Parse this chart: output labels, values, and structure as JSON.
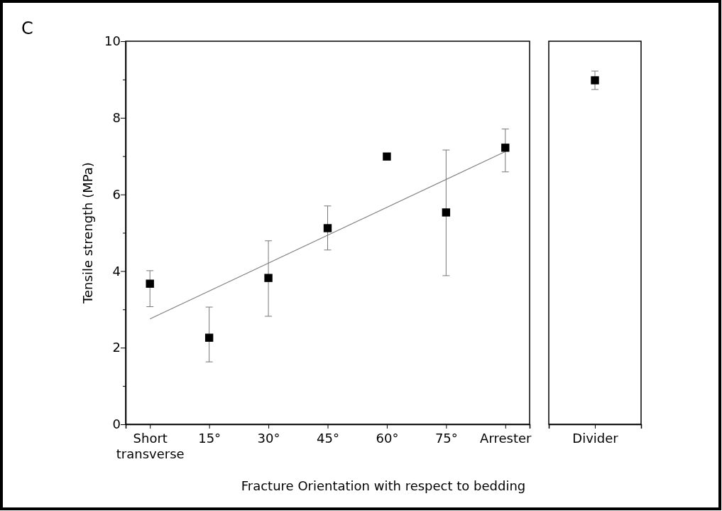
{
  "chart_data": [
    {
      "type": "scatter",
      "ylabel": "Tensile strength (MPa)",
      "xlabel": "Fracture Orientation with respect to bedding",
      "annotations": [
        "C"
      ],
      "categories": [
        "Short\ntransverse",
        "15°",
        "30°",
        "45°",
        "60°",
        "75°",
        "Arrester"
      ],
      "ylim": [
        0,
        10
      ],
      "yticks": [
        0,
        {
          "value": 1,
          "label": null
        },
        2,
        {
          "value": 3,
          "label": null
        },
        4,
        {
          "value": 5,
          "label": null
        },
        6,
        {
          "value": 7,
          "label": null
        },
        8,
        {
          "value": 9,
          "label": null
        },
        10
      ],
      "marker": "square",
      "grid": false,
      "series": [
        {
          "color": "#000000",
          "values": [
            3.67,
            2.26,
            3.82,
            5.12,
            6.99,
            5.53,
            7.22
          ],
          "errors": [
            [
              3.07,
              4.01
            ],
            [
              1.63,
              3.06
            ],
            [
              2.82,
              4.79
            ],
            [
              4.55,
              5.7
            ],
            null,
            [
              3.88,
              7.16
            ],
            [
              6.59,
              7.71
            ]
          ]
        },
        {
          "type": "line",
          "marker": "none",
          "color": "#808080",
          "x": [
            "Short\ntransverse",
            "Arrester"
          ],
          "values": [
            2.75,
            7.12
          ]
        }
      ]
    },
    {
      "type": "scatter",
      "categories": [
        "Divider"
      ],
      "ylim": [
        0,
        10
      ],
      "tick_labels": "x",
      "marker": "square",
      "grid": false,
      "series": [
        {
          "color": "#000000",
          "values": [
            8.98
          ],
          "errors": [
            [
              8.74,
              9.22
            ]
          ]
        }
      ]
    }
  ]
}
